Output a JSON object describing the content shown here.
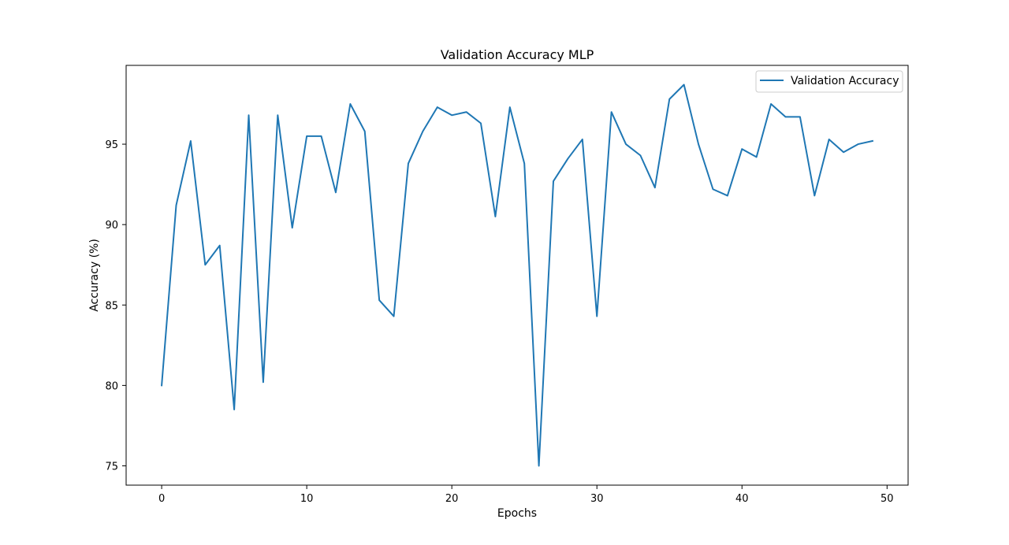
{
  "chart_data": {
    "type": "line",
    "title": "Validation Accuracy MLP",
    "xlabel": "Epochs",
    "ylabel": "Accuracy (%)",
    "xlim": [
      -2.45,
      51.45
    ],
    "ylim": [
      73.8,
      99.9
    ],
    "xticks": [
      0,
      10,
      20,
      30,
      40,
      50
    ],
    "yticks": [
      75,
      80,
      85,
      90,
      95
    ],
    "grid": false,
    "legend_position": "top-right",
    "series": [
      {
        "name": "Validation Accuracy",
        "color": "#1f77b4",
        "x": [
          0,
          1,
          2,
          3,
          4,
          5,
          6,
          7,
          8,
          9,
          10,
          11,
          12,
          13,
          14,
          15,
          16,
          17,
          18,
          19,
          20,
          21,
          22,
          23,
          24,
          25,
          26,
          27,
          28,
          29,
          30,
          31,
          32,
          33,
          34,
          35,
          36,
          37,
          38,
          39,
          40,
          41,
          42,
          43,
          44,
          45,
          46,
          47,
          48,
          49
        ],
        "values": [
          80.0,
          91.2,
          95.2,
          87.5,
          88.7,
          78.5,
          96.8,
          80.2,
          96.8,
          89.8,
          95.5,
          95.5,
          92.0,
          97.5,
          95.8,
          85.3,
          84.3,
          93.8,
          95.8,
          97.3,
          96.8,
          97.0,
          96.3,
          90.5,
          97.3,
          93.8,
          75.0,
          92.7,
          94.1,
          95.3,
          84.3,
          97.0,
          95.0,
          94.3,
          92.3,
          97.8,
          98.7,
          95.0,
          92.2,
          91.8,
          94.7,
          94.2,
          97.5,
          96.7,
          96.7,
          91.8,
          95.3,
          94.5,
          95.0,
          95.2
        ]
      }
    ]
  }
}
